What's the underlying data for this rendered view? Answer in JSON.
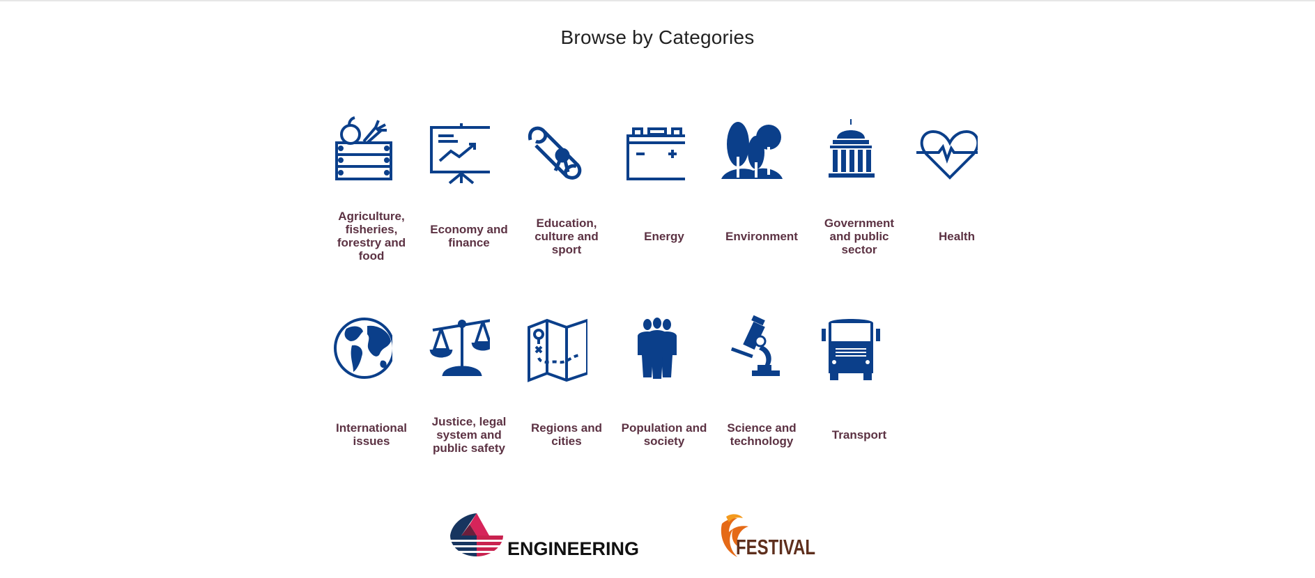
{
  "page": {
    "title": "Browse by Categories"
  },
  "colors": {
    "icon": "#0b3f8a",
    "label": "#5c3243",
    "title": "#222222"
  },
  "categories": [
    {
      "label": "Agriculture, fisheries, forestry and food",
      "icon": "crate-icon"
    },
    {
      "label": "Economy and finance",
      "icon": "chart-board-icon"
    },
    {
      "label": "Education, culture and sport",
      "icon": "diploma-icon"
    },
    {
      "label": "Energy",
      "icon": "battery-icon"
    },
    {
      "label": "Environment",
      "icon": "trees-icon"
    },
    {
      "label": "Government and public sector",
      "icon": "capitol-icon"
    },
    {
      "label": "Health",
      "icon": "heart-pulse-icon"
    },
    {
      "label": "International issues",
      "icon": "globe-icon"
    },
    {
      "label": "Justice, legal system and public safety",
      "icon": "scales-icon"
    },
    {
      "label": "Regions and cities",
      "icon": "map-icon"
    },
    {
      "label": "Population and society",
      "icon": "people-icon"
    },
    {
      "label": "Science and technology",
      "icon": "microscope-icon"
    },
    {
      "label": "Transport",
      "icon": "truck-icon"
    }
  ],
  "footer": {
    "logos": [
      {
        "name": "engineering-logo",
        "text": "ENGINEERING"
      },
      {
        "name": "festival-logo",
        "text": "FESTIVAL"
      }
    ]
  }
}
